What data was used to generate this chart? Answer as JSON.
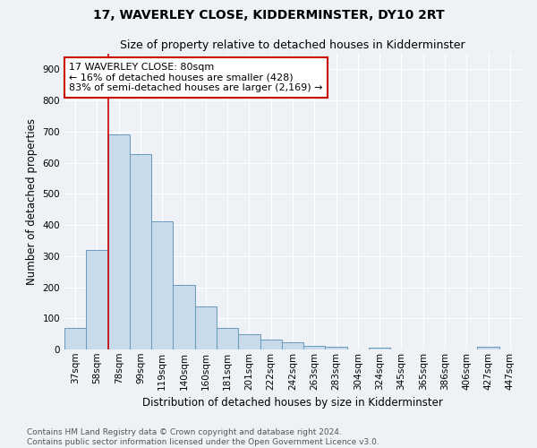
{
  "title": "17, WAVERLEY CLOSE, KIDDERMINSTER, DY10 2RT",
  "subtitle": "Size of property relative to detached houses in Kidderminster",
  "xlabel": "Distribution of detached houses by size in Kidderminster",
  "ylabel": "Number of detached properties",
  "categories": [
    "37sqm",
    "58sqm",
    "78sqm",
    "99sqm",
    "119sqm",
    "140sqm",
    "160sqm",
    "181sqm",
    "201sqm",
    "222sqm",
    "242sqm",
    "263sqm",
    "283sqm",
    "304sqm",
    "324sqm",
    "345sqm",
    "365sqm",
    "386sqm",
    "406sqm",
    "427sqm",
    "447sqm"
  ],
  "values": [
    70,
    320,
    690,
    628,
    412,
    208,
    137,
    70,
    48,
    33,
    22,
    12,
    8,
    0,
    7,
    0,
    0,
    0,
    0,
    8,
    0
  ],
  "bar_color": "#c9daea",
  "bar_edge_color": "#6699bb",
  "annotation_box_text": "17 WAVERLEY CLOSE: 80sqm\n← 16% of detached houses are smaller (428)\n83% of semi-detached houses are larger (2,169) →",
  "vline_x_index": 2,
  "ylim": [
    0,
    950
  ],
  "yticks": [
    0,
    100,
    200,
    300,
    400,
    500,
    600,
    700,
    800,
    900
  ],
  "background_color": "#eef2f7",
  "plot_bg_color": "#eef2f7",
  "footer": "Contains HM Land Registry data © Crown copyright and database right 2024.\nContains public sector information licensed under the Open Government Licence v3.0.",
  "title_fontsize": 10,
  "subtitle_fontsize": 9,
  "tick_fontsize": 7.5,
  "ylabel_fontsize": 8.5,
  "xlabel_fontsize": 8.5,
  "grid_color": "#ffffff",
  "annotation_box_color": "#ffffff",
  "annotation_box_edge_color": "#cc0000",
  "annotation_text_fontsize": 8,
  "vline_color": "#cc0000",
  "footer_fontsize": 6.5,
  "footer_color": "#555555"
}
